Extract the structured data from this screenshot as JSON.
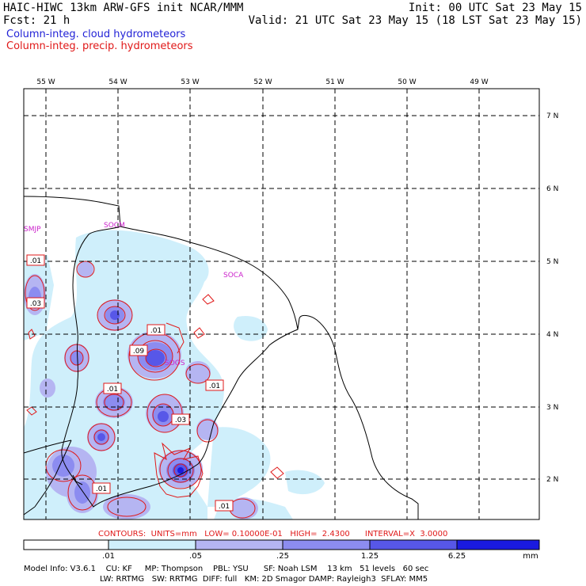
{
  "header": {
    "title": "HAIC-HIWC 13km ARW-GFS init   NCAR/MMM",
    "init": "Init: 00 UTC Sat 23 May 15",
    "fcst": "Fcst:   21 h",
    "valid": "Valid: 21 UTC Sat 23 May 15 (18 LST Sat 23 May 15)",
    "legend_cloud": "Column-integ. cloud hydrometeors",
    "legend_precip": "Column-integ. precip. hydrometeors"
  },
  "colors": {
    "cloud_legend": "#1f1fd6",
    "precip_legend": "#e01818",
    "coast": "#000000",
    "station": "#cc22cc",
    "shade_1": "#cfeffb",
    "shade_2": "#b5b5f2",
    "shade_3": "#8c8cf0",
    "shade_4": "#5757e8",
    "shade_5": "#1a1ae0"
  },
  "axes": {
    "lon_labels": [
      "55 W",
      "54 W",
      "53 W",
      "52 W",
      "51 W",
      "50 W",
      "49 W"
    ],
    "lat_labels": [
      "7 N",
      "6 N",
      "5 N",
      "4 N",
      "3 N",
      "2 N"
    ]
  },
  "stations": [
    "SMJP",
    "SOCM",
    "SOCA",
    "SOOS"
  ],
  "contour_labels": [
    ".01",
    ".03",
    ".01",
    ".09",
    ".01",
    ".01",
    ".03",
    ".01",
    ".01"
  ],
  "footer": {
    "contours_line": "CONTOURS:  UNITS=mm   LOW= 0.10000E-01   HIGH=  2.4300      INTERVAL=X  3.0000",
    "colorbar_ticks": [
      ".01",
      ".05",
      ".25",
      "1.25",
      "6.25"
    ],
    "colorbar_unit": "mm",
    "model_info_1": "Model Info: V3.6.1    CU: KF     MP: Thompson    PBL: YSU      SF: Noah LSM    13 km   51 levels   60 sec",
    "model_info_2": "LW: RRTMG   SW: RRTMG  DIFF: full   KM: 2D Smagor DAMP: Rayleigh3  SFLAY: MM5"
  }
}
